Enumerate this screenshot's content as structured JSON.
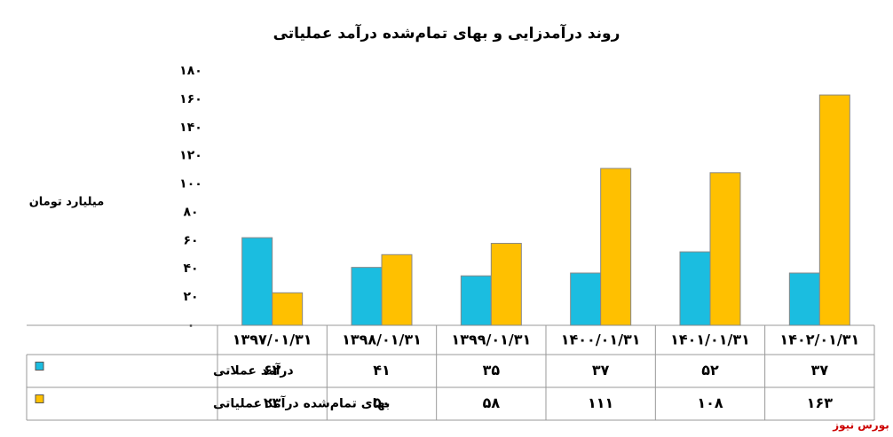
{
  "chart_data": {
    "type": "bar",
    "title": "روند درآمدزایی و بهای تمام‌شده درآمد عملیاتی",
    "y_label": "میلیارد تومان",
    "source": "بورس نیوز",
    "categories": [
      "۱۳۹۷/۰۱/۳۱",
      "۱۳۹۸/۰۱/۳۱",
      "۱۳۹۹/۰۱/۳۱",
      "۱۴۰۰/۰۱/۳۱",
      "۱۴۰۱/۰۱/۳۱",
      "۱۴۰۲/۰۱/۳۱"
    ],
    "series": [
      {
        "name": "درآمد عملاتی",
        "color": "#1bbde0",
        "values": [
          62,
          41,
          35,
          37,
          52,
          37
        ],
        "value_labels": [
          "۶۲",
          "۴۱",
          "۳۵",
          "۳۷",
          "۵۲",
          "۳۷"
        ]
      },
      {
        "name": "بهای تمام‌شده درآمد عملیاتی",
        "color": "#ffc000",
        "values": [
          23,
          50,
          58,
          111,
          108,
          163
        ],
        "value_labels": [
          "۲۳",
          "۵۰",
          "۵۸",
          "۱۱۱",
          "۱۰۸",
          "۱۶۳"
        ]
      }
    ],
    "ylim": [
      0,
      180
    ],
    "yticks": [
      {
        "value": 0,
        "label": "۰"
      },
      {
        "value": 20,
        "label": "۲۰"
      },
      {
        "value": 40,
        "label": "۴۰"
      },
      {
        "value": 60,
        "label": "۶۰"
      },
      {
        "value": 80,
        "label": "۸۰"
      },
      {
        "value": 100,
        "label": "۱۰۰"
      },
      {
        "value": 120,
        "label": "۱۲۰"
      },
      {
        "value": 140,
        "label": "۱۴۰"
      },
      {
        "value": 160,
        "label": "۱۶۰"
      },
      {
        "value": 180,
        "label": "۱۸۰"
      }
    ],
    "grid": false
  }
}
